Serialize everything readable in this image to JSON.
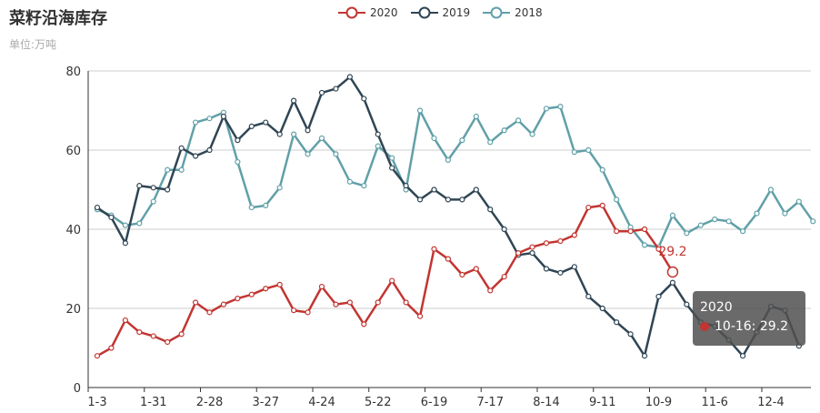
{
  "header": {
    "title": "菜籽沿海库存",
    "subtitle": "单位:万吨"
  },
  "legend": [
    {
      "name": "2020",
      "color": "#c23531",
      "icon": "circle-line-icon"
    },
    {
      "name": "2019",
      "color": "#2f4554",
      "icon": "circle-line-icon"
    },
    {
      "name": "2018",
      "color": "#61a0a8",
      "icon": "circle-line-icon"
    }
  ],
  "tooltip": {
    "series": "2020",
    "row": "10-16: 29.2",
    "color": "#c23531"
  },
  "chart_data": {
    "type": "line",
    "title": "菜籽沿海库存",
    "subtitle": "单位:万吨",
    "ylim": [
      0,
      80
    ],
    "y_ticks": [
      0,
      20,
      40,
      60,
      80
    ],
    "x_tick_labels": [
      "1-3",
      "1-31",
      "2-28",
      "3-27",
      "4-24",
      "5-22",
      "6-19",
      "7-17",
      "8-14",
      "9-11",
      "10-9",
      "11-6",
      "12-4"
    ],
    "x_tick_every": 4,
    "grid": true,
    "legend_position": "top-center",
    "annotation": {
      "series": "2020",
      "label": "29.2"
    },
    "series": [
      {
        "name": "2020",
        "color": "#c23531",
        "values": [
          8,
          10,
          17,
          14,
          13,
          11.5,
          13.5,
          21.5,
          19,
          21,
          22.5,
          23.5,
          25,
          26,
          19.5,
          19,
          25.5,
          21,
          21.5,
          16,
          21.5,
          27,
          21.5,
          18,
          35,
          32.5,
          28.5,
          30,
          24.5,
          28,
          34,
          35.5,
          36.5,
          37,
          38.5,
          45.5,
          46,
          39.5,
          39.5,
          40,
          35,
          29.2
        ]
      },
      {
        "name": "2019",
        "color": "#2f4554",
        "values": [
          45.5,
          43,
          36.5,
          51,
          50.5,
          50,
          60.5,
          58.5,
          60,
          68.5,
          62.5,
          66,
          67,
          64,
          72.5,
          65,
          74.5,
          75.5,
          78.5,
          73,
          64,
          55.5,
          51,
          47.5,
          50,
          47.5,
          47.5,
          50,
          45,
          40,
          33.5,
          34,
          30,
          29,
          30.5,
          23,
          20,
          16.5,
          13.5,
          8,
          23,
          26.5,
          21,
          16.5,
          15.5,
          12,
          8,
          14,
          20.5,
          19.5,
          10.5
        ]
      },
      {
        "name": "2018",
        "color": "#61a0a8",
        "values": [
          45,
          43.5,
          41,
          41.5,
          47,
          55,
          55,
          67,
          68,
          69.5,
          57,
          45.5,
          46,
          50.5,
          64,
          59,
          63,
          59,
          52,
          51,
          61,
          58,
          50,
          70,
          63,
          57.5,
          62.5,
          68.5,
          62,
          65,
          67.5,
          64,
          70.5,
          71,
          59.5,
          60,
          55,
          47.5,
          40.5,
          36,
          35.5,
          43.5,
          39,
          41,
          42.5,
          42,
          39.5,
          44,
          50,
          44,
          47,
          42
        ]
      }
    ]
  }
}
